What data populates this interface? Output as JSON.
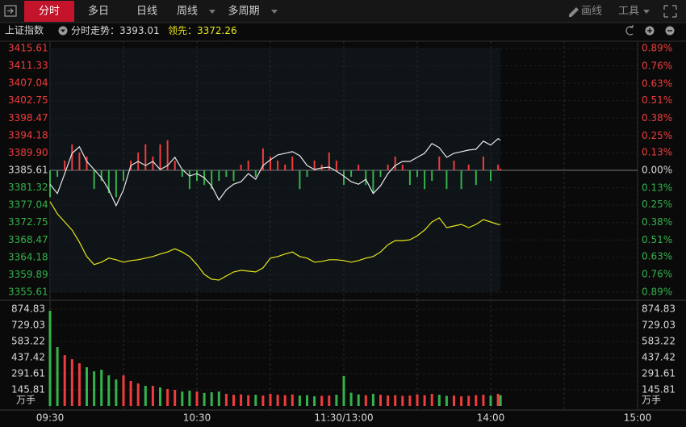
{
  "toolbar": {
    "tabs": [
      "分时",
      "多日",
      "日线",
      "周线",
      "多周期"
    ],
    "tools": [
      "画线",
      "工具"
    ]
  },
  "info": {
    "name": "上证指数",
    "price_label": "分时走势：",
    "lead_label": "领先："
  },
  "chart_data": [
    {
      "type": "line",
      "x": [
        0,
        3,
        6,
        9,
        12,
        15,
        18,
        21,
        24,
        27,
        30,
        33,
        36,
        39,
        42,
        45,
        48,
        51,
        54,
        57,
        60,
        63,
        66,
        69,
        72,
        75,
        78,
        81,
        84,
        87,
        90,
        93,
        96,
        99,
        102,
        105,
        108,
        111,
        114,
        117,
        120,
        123,
        126,
        129,
        132,
        135,
        138,
        141,
        144,
        147,
        150,
        153,
        156,
        159,
        162,
        165,
        168,
        171,
        174,
        177,
        180,
        183,
        184
      ],
      "xlim": [
        0,
        240
      ],
      "series": [
        {
          "color": "#e8e8e8",
          "values": [
            3382.2,
            3379.9,
            3384.8,
            3389.8,
            3391.4,
            3387.8,
            3385.8,
            3383.8,
            3380.8,
            3376.9,
            3380.8,
            3386.8,
            3387.8,
            3386.8,
            3387.8,
            3385.8,
            3386.8,
            3388.8,
            3385.8,
            3384.2,
            3384.8,
            3383.8,
            3381.8,
            3378.3,
            3380.8,
            3382.2,
            3382.8,
            3384.8,
            3383.4,
            3386.8,
            3388.2,
            3389.4,
            3389.8,
            3390.2,
            3389.2,
            3386.8,
            3385.8,
            3386.2,
            3386.4,
            3385.4,
            3384.2,
            3382.8,
            3382.2,
            3383.4,
            3379.9,
            3381.8,
            3384.8,
            3386.8,
            3387.8,
            3387.8,
            3388.8,
            3389.8,
            3392.2,
            3391.2,
            3388.8,
            3389.8,
            3390.2,
            3390.6,
            3390.8,
            3392.8,
            3391.8,
            3393.4,
            3393.01
          ]
        },
        {
          "color": "#e6e619",
          "values": [
            3377.9,
            3374.9,
            3372.9,
            3370.9,
            3367.9,
            3364.4,
            3362.4,
            3363.0,
            3364.0,
            3363.6,
            3363.0,
            3363.4,
            3363.6,
            3364.0,
            3364.4,
            3365.0,
            3365.5,
            3366.3,
            3365.5,
            3364.4,
            3362.4,
            3360.0,
            3358.8,
            3358.6,
            3359.6,
            3360.6,
            3361.0,
            3360.8,
            3360.6,
            3361.6,
            3364.0,
            3364.4,
            3365.0,
            3365.5,
            3364.4,
            3364.0,
            3363.0,
            3363.2,
            3363.6,
            3363.6,
            3363.4,
            3363.0,
            3363.4,
            3364.0,
            3364.4,
            3365.5,
            3367.3,
            3368.3,
            3368.3,
            3368.5,
            3369.5,
            3370.9,
            3372.9,
            3373.9,
            3371.5,
            3371.9,
            3372.3,
            3371.5,
            3372.3,
            3373.5,
            3372.9,
            3372.3,
            3372.26
          ]
        }
      ],
      "bars": [
        3379,
        3384,
        3388,
        3392,
        3390,
        3389,
        3381,
        3383,
        3380,
        3379,
        3383,
        3388,
        3390,
        3392,
        3389,
        3392,
        3393,
        3388,
        3384,
        3381,
        3383,
        3382,
        3381,
        3383,
        3384,
        3383,
        3387,
        3388,
        3384,
        3391,
        3389,
        3388,
        3387,
        3389,
        3381,
        3384,
        3388,
        3387,
        3390,
        3388,
        3382,
        3384,
        3387,
        3382,
        3380,
        3384,
        3387,
        3389,
        3387,
        3382,
        3384,
        3381,
        3383,
        3389,
        3381,
        3388,
        3381,
        3387,
        3382,
        3389,
        3383,
        3387,
        3386
      ],
      "up_color": "#f03c3c",
      "down_color": "#35b24c",
      "ylim": [
        3355.61,
        3415.61
      ],
      "yticks": [
        3415.61,
        3411.33,
        3407.04,
        3402.75,
        3398.47,
        3394.18,
        {
          "value": 3389.9,
          "label": "3389.90"
        },
        3385.61,
        3381.32,
        3377.04,
        3372.75,
        3368.47,
        3364.18,
        3359.89,
        3355.61
      ],
      "y2lim": [
        -0.89,
        0.89
      ],
      "y2ticks": [
        {
          "value": 0.89,
          "label": "0.89%"
        },
        {
          "value": 0.76,
          "label": "0.76%"
        },
        {
          "value": 0.63,
          "label": "0.63%"
        },
        {
          "value": 0.51,
          "label": "0.51%"
        },
        {
          "value": 0.38,
          "label": "0.38%"
        },
        {
          "value": 0.25,
          "label": "0.25%"
        },
        {
          "value": 0.13,
          "label": "0.13%"
        },
        {
          "value": 0,
          "label": "0.00%"
        },
        {
          "value": -0.13,
          "label": "0.13%"
        },
        {
          "value": -0.25,
          "label": "0.25%"
        },
        {
          "value": -0.38,
          "label": "0.38%"
        },
        {
          "value": -0.51,
          "label": "0.51%"
        },
        {
          "value": -0.63,
          "label": "0.63%"
        },
        {
          "value": -0.76,
          "label": "0.76%"
        },
        {
          "value": -0.89,
          "label": "0.89%"
        }
      ],
      "grid": true
    },
    {
      "type": "bar",
      "x": [
        0,
        3,
        6,
        9,
        12,
        15,
        18,
        21,
        24,
        27,
        30,
        33,
        36,
        39,
        42,
        45,
        48,
        51,
        54,
        57,
        60,
        63,
        66,
        69,
        72,
        75,
        78,
        81,
        84,
        87,
        90,
        93,
        96,
        99,
        102,
        105,
        108,
        111,
        114,
        117,
        120,
        123,
        126,
        129,
        132,
        135,
        138,
        141,
        144,
        147,
        150,
        153,
        156,
        159,
        162,
        165,
        168,
        171,
        174,
        177,
        180,
        183,
        184
      ],
      "values": [
        860,
        532,
        459,
        423,
        386,
        350,
        313,
        328,
        277,
        240,
        277,
        226,
        204,
        182,
        182,
        168,
        153,
        146,
        131,
        139,
        131,
        118,
        124,
        131,
        110,
        102,
        105,
        98,
        102,
        95,
        110,
        102,
        98,
        105,
        95,
        98,
        88,
        92,
        95,
        102,
        270,
        120,
        105,
        98,
        110,
        102,
        95,
        98,
        92,
        95,
        105,
        98,
        110,
        102,
        92,
        95,
        88,
        92,
        98,
        102,
        95,
        110,
        98
      ],
      "up_color": "#f03c3c",
      "down_color": "#35b24c",
      "unit": "万手",
      "xlim": [
        0,
        240
      ],
      "xticks": [
        {
          "value": 0,
          "label": "09:30"
        },
        {
          "value": 60,
          "label": "10:30"
        },
        {
          "value": 120,
          "label": "11:30/13:00"
        },
        {
          "value": 180,
          "label": "14:00"
        },
        {
          "value": 240,
          "label": "15:00"
        }
      ],
      "ylim": [
        0,
        874.83
      ],
      "yticks": [
        874.83,
        729.03,
        583.22,
        437.42,
        291.61,
        145.81
      ],
      "grid": true
    }
  ]
}
